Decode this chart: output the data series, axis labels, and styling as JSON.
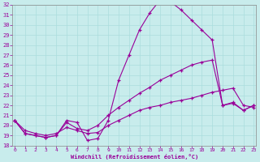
{
  "xlabel": "Windchill (Refroidissement éolien,°C)",
  "bg_color": "#c8ecec",
  "line_color": "#990099",
  "grid_color": "#aadddd",
  "spine_color": "#888888",
  "x_min": 0,
  "x_max": 23,
  "y_min": 18,
  "y_max": 32,
  "curve1_x": [
    0,
    1,
    2,
    3,
    4,
    5,
    6,
    7,
    8,
    9,
    10,
    11,
    12,
    13,
    14,
    15,
    16,
    17,
    18,
    19,
    20,
    21,
    22,
    23
  ],
  "curve1_y": [
    20.5,
    19.2,
    19.0,
    18.8,
    19.0,
    20.5,
    20.3,
    18.5,
    18.7,
    20.5,
    24.5,
    27.0,
    29.5,
    31.2,
    32.5,
    32.3,
    31.5,
    30.5,
    29.5,
    28.5,
    22.0,
    22.3,
    21.5,
    22.0
  ],
  "curve2_x": [
    0,
    1,
    2,
    3,
    4,
    5,
    6,
    7,
    8,
    9,
    10,
    11,
    12,
    13,
    14,
    15,
    16,
    17,
    18,
    19,
    20,
    21,
    22,
    23
  ],
  "curve2_y": [
    20.5,
    19.2,
    19.0,
    18.8,
    19.0,
    20.3,
    19.7,
    19.5,
    20.0,
    21.0,
    21.8,
    22.5,
    23.2,
    23.8,
    24.5,
    25.0,
    25.5,
    26.0,
    26.3,
    26.5,
    22.0,
    22.2,
    21.5,
    22.0
  ],
  "curve3_x": [
    0,
    1,
    2,
    3,
    4,
    5,
    6,
    7,
    8,
    9,
    10,
    11,
    12,
    13,
    14,
    15,
    16,
    17,
    18,
    19,
    20,
    21,
    22,
    23
  ],
  "curve3_y": [
    20.5,
    19.5,
    19.2,
    19.0,
    19.2,
    19.8,
    19.5,
    19.2,
    19.3,
    20.0,
    20.5,
    21.0,
    21.5,
    21.8,
    22.0,
    22.3,
    22.5,
    22.7,
    23.0,
    23.3,
    23.5,
    23.7,
    22.0,
    21.8
  ]
}
